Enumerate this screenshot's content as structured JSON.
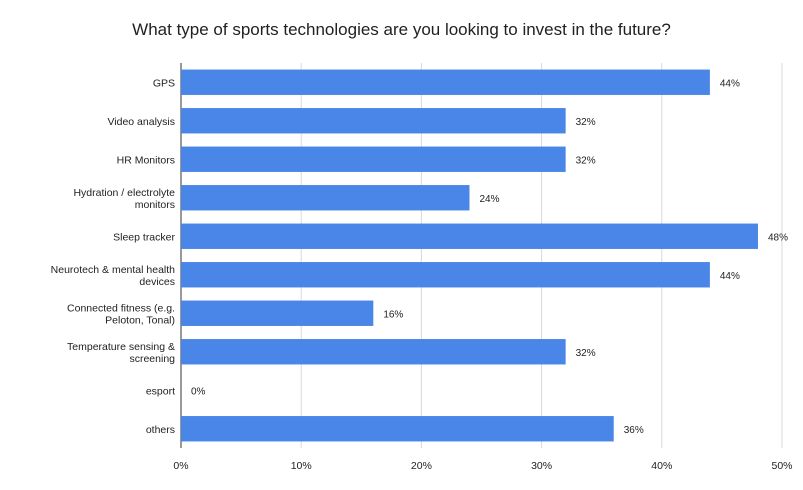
{
  "chart_data": {
    "type": "bar",
    "orientation": "horizontal",
    "title": "What type of sports technologies are you looking to invest in the future?",
    "categories": [
      "GPS",
      "Video analysis",
      "HR Monitors",
      "Hydration / electrolyte monitors",
      "Sleep tracker",
      "Neurotech & mental health devices",
      "Connected fitness (e.g. Peloton, Tonal)",
      "Temperature sensing & screening",
      "esport",
      "others"
    ],
    "values": [
      44,
      32,
      32,
      24,
      48,
      44,
      16,
      32,
      0,
      36
    ],
    "value_labels": [
      "44%",
      "32%",
      "32%",
      "24%",
      "48%",
      "44%",
      "16%",
      "32%",
      "0%",
      "36%"
    ],
    "xlim": [
      0,
      50
    ],
    "x_ticks": [
      0,
      10,
      20,
      30,
      40,
      50
    ],
    "x_tick_labels": [
      "0%",
      "10%",
      "20%",
      "30%",
      "40%",
      "50%"
    ],
    "bar_color": "#4a86e8",
    "grid": true,
    "legend": "none"
  }
}
